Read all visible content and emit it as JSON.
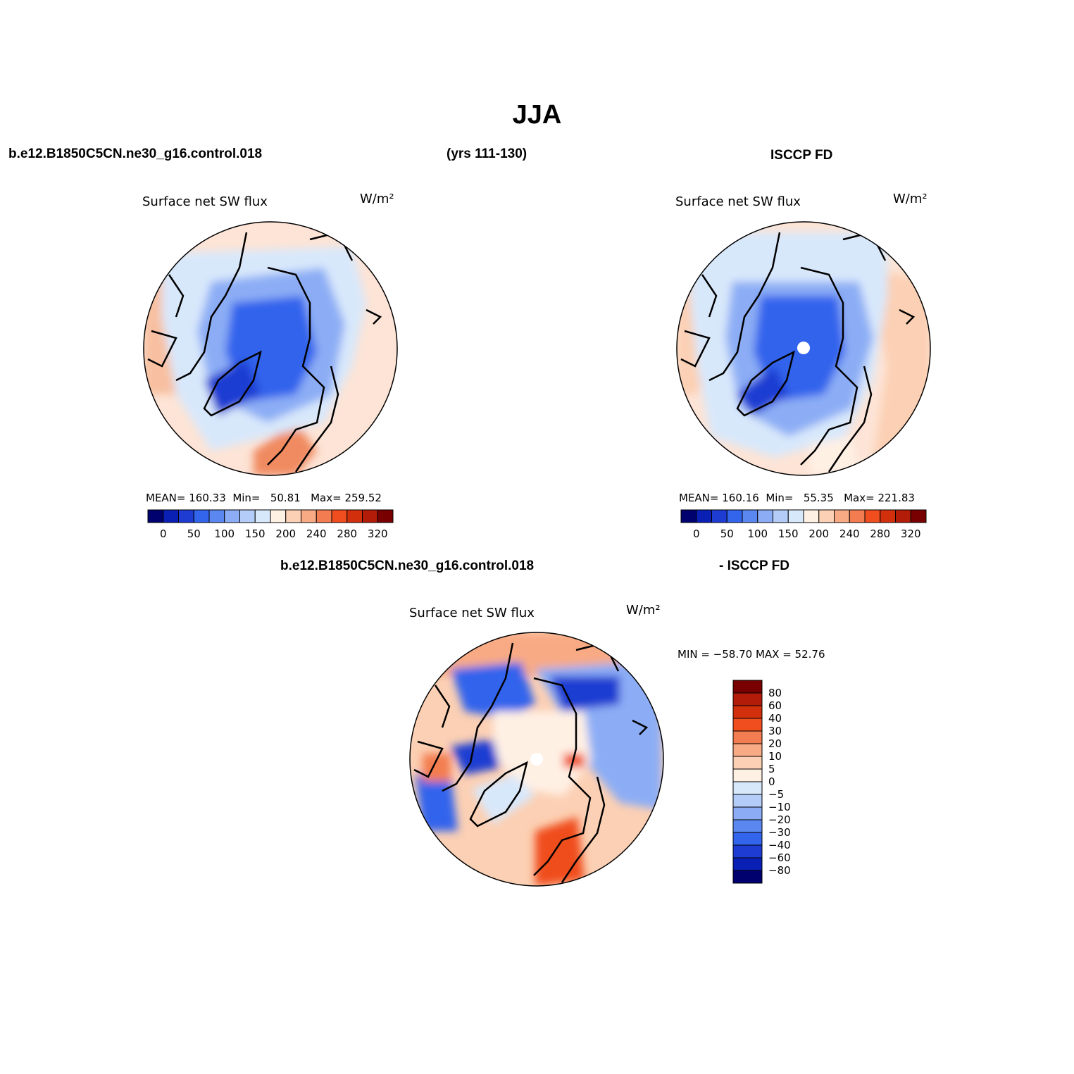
{
  "page_title": "JJA",
  "panels": {
    "model": {
      "case": "b.e12.B1850C5CN.ne30_g16.control.018",
      "years": "(yrs 111-130)",
      "variable": "Surface net SW flux",
      "units": "W/m²",
      "mean_label": "MEAN=",
      "mean": "160.33",
      "min_label": "Min=",
      "min": "50.81",
      "max_label": "Max=",
      "max": "259.52"
    },
    "obs": {
      "case": "ISCCP FD",
      "variable": "Surface net SW flux",
      "units": "W/m²",
      "mean_label": "MEAN=",
      "mean": "160.16",
      "min_label": "Min=",
      "min": "55.35",
      "max_label": "Max=",
      "max": "221.83"
    },
    "diff": {
      "case": "b.e12.B1850C5CN.ne30_g16.control.018",
      "minus": "- ISCCP FD",
      "variable": "Surface net SW flux",
      "units": "W/m²",
      "minmax": "MIN = −58.70 MAX =   52.76"
    }
  },
  "abs_colorbar": {
    "labels": [
      "0",
      "50",
      "100",
      "150",
      "200",
      "240",
      "280",
      "320"
    ],
    "colors": [
      "#00006e",
      "#0a1fb4",
      "#1e3cd2",
      "#3264ec",
      "#5a87f0",
      "#8cadf5",
      "#b4cdf8",
      "#d8e8fb",
      "#fff0e4",
      "#fcd0b4",
      "#f8aa84",
      "#f37d50",
      "#f04e1e",
      "#d2300c",
      "#b41c0a",
      "#780000"
    ]
  },
  "diff_colorbar": {
    "labels": [
      "80",
      "60",
      "40",
      "30",
      "20",
      "10",
      "5",
      "0",
      "−5",
      "−10",
      "−20",
      "−30",
      "−40",
      "−60",
      "−80"
    ],
    "colors": [
      "#780000",
      "#b41c0a",
      "#d2300c",
      "#f04e1e",
      "#f37d50",
      "#f8aa84",
      "#fcd0b4",
      "#fff0e4",
      "#d8e8fb",
      "#b4cdf8",
      "#8cadf5",
      "#5a87f0",
      "#3264ec",
      "#1e3cd2",
      "#0a1fb4",
      "#00006e"
    ]
  }
}
